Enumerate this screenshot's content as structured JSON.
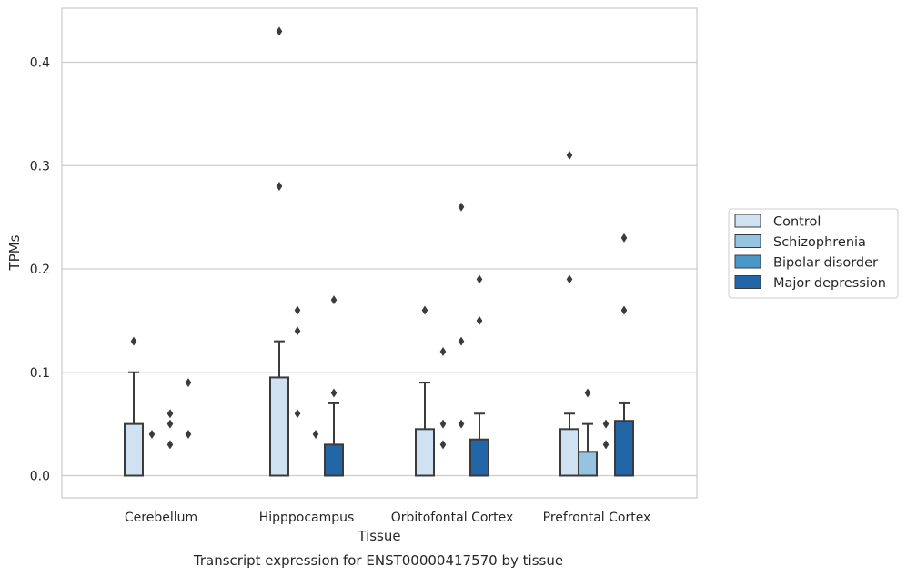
{
  "chart_data": {
    "type": "bar",
    "title": "",
    "caption": "Transcript expression for ENST00000417570 by tissue",
    "xlabel": "Tissue",
    "ylabel": "TPMs",
    "ylim": [
      -0.021,
      0.454
    ],
    "yticks": [
      0.0,
      0.1,
      0.2,
      0.3,
      0.4
    ],
    "ytick_labels": [
      "0.0",
      "0.1",
      "0.2",
      "0.3",
      "0.4"
    ],
    "grid": "horizontal",
    "legend_position": "right",
    "categories": [
      "Cerebellum",
      "Hipppocampus",
      "Orbitofontal Cortex",
      "Prefrontal Cortex"
    ],
    "series": [
      {
        "name": "Control",
        "color": "#d0e1f2",
        "values": [
          0.05,
          0.095,
          0.045,
          0.045
        ],
        "whisker_high": [
          0.1,
          0.13,
          0.09,
          0.06
        ],
        "outliers": [
          [
            0.13
          ],
          [
            0.43,
            0.28
          ],
          [
            0.16
          ],
          [
            0.31,
            0.19
          ]
        ]
      },
      {
        "name": "Schizophrenia",
        "color": "#94c4df",
        "values": [
          0.0,
          0.0,
          0.0,
          0.023
        ],
        "whisker_high": [
          null,
          null,
          null,
          0.05
        ],
        "outliers": [
          [
            0.04
          ],
          [
            0.16,
            0.14,
            0.06
          ],
          [
            0.12,
            0.05,
            0.03
          ],
          [
            0.08
          ]
        ]
      },
      {
        "name": "Bipolar disorder",
        "color": "#4a98c9",
        "values": [
          0.0,
          0.0,
          0.0,
          0.0
        ],
        "whisker_high": [
          null,
          null,
          null,
          null
        ],
        "outliers": [
          [
            0.06,
            0.05,
            0.03
          ],
          [
            0.04
          ],
          [
            0.26,
            0.13,
            0.05
          ],
          [
            0.05,
            0.03
          ]
        ]
      },
      {
        "name": "Major depression",
        "color": "#2366a8",
        "values": [
          0.0,
          0.03,
          0.035,
          0.053
        ],
        "whisker_high": [
          null,
          0.07,
          0.06,
          0.07
        ],
        "outliers": [
          [
            0.09,
            0.04
          ],
          [
            0.17,
            0.08
          ],
          [
            0.19,
            0.15
          ],
          [
            0.23,
            0.16
          ]
        ]
      }
    ]
  }
}
